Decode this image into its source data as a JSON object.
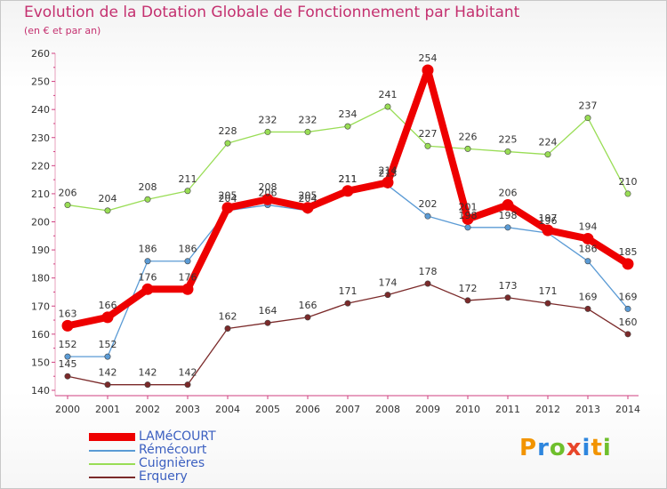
{
  "title": "Evolution de la Dotation Globale de Fonctionnement par Habitant",
  "subtitle": "(en € et par an)",
  "chart_data": {
    "type": "line",
    "x": [
      "2000",
      "2001",
      "2002",
      "2003",
      "2004",
      "2005",
      "2006",
      "2007",
      "2008",
      "2009",
      "2010",
      "2011",
      "2012",
      "2013",
      "2014"
    ],
    "ylim": [
      140,
      260
    ],
    "yticks": [
      140,
      150,
      160,
      170,
      180,
      190,
      200,
      210,
      220,
      230,
      240,
      250,
      260
    ],
    "grid": false,
    "legend_position": "bottom-left",
    "series": [
      {
        "name": "LAMéCOURT",
        "color": "#ee0000",
        "values": [
          163,
          166,
          176,
          176,
          205,
          208,
          205,
          211,
          214,
          254,
          201,
          206,
          197,
          194,
          185
        ]
      },
      {
        "name": "Rémécourt",
        "color": "#5b9bd5",
        "values": [
          152,
          152,
          186,
          186,
          204,
          206,
          204,
          211,
          213,
          202,
          198,
          198,
          196,
          186,
          169
        ]
      },
      {
        "name": "Cuignières",
        "color": "#99dd55",
        "values": [
          206,
          204,
          208,
          211,
          228,
          232,
          232,
          234,
          241,
          227,
          226,
          225,
          224,
          237,
          210
        ]
      },
      {
        "name": "Erquery",
        "color": "#7b2a2a",
        "values": [
          145,
          142,
          142,
          142,
          162,
          164,
          166,
          171,
          174,
          178,
          172,
          173,
          171,
          169,
          160
        ]
      }
    ]
  },
  "legend": {
    "items": [
      "LAMéCOURT",
      "Rémécourt",
      "Cuignières",
      "Erquery"
    ]
  },
  "logo": {
    "letters": [
      "P",
      "r",
      "o",
      "x",
      "i",
      "t",
      "i"
    ],
    "colors": [
      "#f29400",
      "#2e86de",
      "#6fbf2c",
      "#e8462a",
      "#2e86de",
      "#f29400",
      "#6fbf2c"
    ]
  }
}
